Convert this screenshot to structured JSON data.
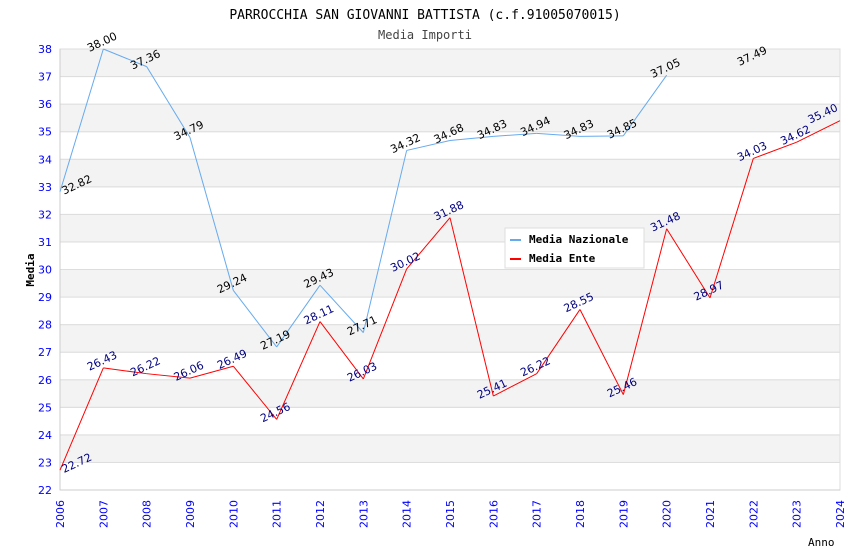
{
  "chart_data": {
    "type": "line",
    "title": "PARROCCHIA SAN GIOVANNI BATTISTA (c.f.91005070015)",
    "subtitle": "Media Importi",
    "xlabel": "Anno",
    "ylabel": "Media",
    "ylim": [
      22,
      38
    ],
    "yticks": [
      22,
      23,
      24,
      25,
      26,
      27,
      28,
      29,
      30,
      31,
      32,
      33,
      34,
      35,
      36,
      37,
      38
    ],
    "x": [
      "2006",
      "2007",
      "2008",
      "2009",
      "2010",
      "2011",
      "2012",
      "2013",
      "2014",
      "2015",
      "2016",
      "2017",
      "2018",
      "2019",
      "2020",
      "2021",
      "2022",
      "2023",
      "2024"
    ],
    "legend_position": "top-right",
    "grid": true,
    "series": [
      {
        "name": "Media Nazionale",
        "color": "#66aaee",
        "label_color": "#000000",
        "values": [
          32.82,
          38.0,
          37.36,
          34.79,
          29.24,
          27.19,
          29.43,
          27.71,
          34.32,
          34.68,
          34.83,
          34.94,
          34.83,
          34.85,
          37.05,
          null,
          37.49,
          null,
          null
        ]
      },
      {
        "name": "Media Ente",
        "color": "#ff0000",
        "label_color": "#000080",
        "values": [
          22.72,
          26.43,
          26.22,
          26.06,
          26.49,
          24.56,
          28.11,
          26.03,
          30.02,
          31.88,
          25.41,
          26.22,
          28.55,
          25.46,
          31.48,
          28.97,
          34.03,
          34.62,
          35.4
        ]
      }
    ]
  }
}
